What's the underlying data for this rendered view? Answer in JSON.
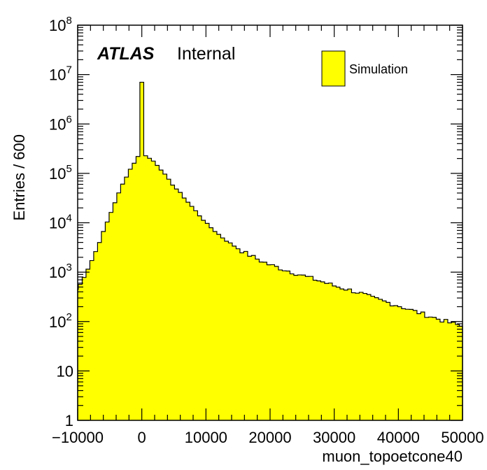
{
  "chart_data": {
    "type": "histogram",
    "xlabel": "muon_topoetcone40",
    "ylabel": "Entries / 600",
    "xlim": [
      -10000,
      50000
    ],
    "ylim": [
      1,
      100000000
    ],
    "yscale": "log",
    "bin_width": 600,
    "fill_color": "#ffff00",
    "line_color": "#000000",
    "x_tick_labels": [
      "−10000",
      "0",
      "10000",
      "20000",
      "30000",
      "40000",
      "50000"
    ],
    "y_tick_labels": [
      {
        "mantissa": "1",
        "exp": ""
      },
      {
        "mantissa": "10",
        "exp": ""
      },
      {
        "mantissa": "10",
        "exp": "2"
      },
      {
        "mantissa": "10",
        "exp": "3"
      },
      {
        "mantissa": "10",
        "exp": "4"
      },
      {
        "mantissa": "10",
        "exp": "5"
      },
      {
        "mantissa": "10",
        "exp": "6"
      },
      {
        "mantissa": "10",
        "exp": "7"
      },
      {
        "mantissa": "10",
        "exp": "8"
      }
    ],
    "experiment_label": "ATLAS",
    "status_label": "Internal",
    "legend": [
      {
        "name": "Simulation",
        "color": "#ffff00"
      }
    ],
    "shape_points": [
      [
        -10000,
        450
      ],
      [
        -9000,
        800
      ],
      [
        -8000,
        1500
      ],
      [
        -7000,
        3000
      ],
      [
        -6000,
        6500
      ],
      [
        -5000,
        14000
      ],
      [
        -4000,
        30000
      ],
      [
        -3000,
        60000
      ],
      [
        -2000,
        110000
      ],
      [
        -1000,
        180000
      ],
      [
        -300,
        250000
      ],
      [
        300,
        250000
      ],
      [
        1000,
        210000
      ],
      [
        2000,
        170000
      ],
      [
        3000,
        120000
      ],
      [
        4000,
        80000
      ],
      [
        5000,
        55000
      ],
      [
        6000,
        40000
      ],
      [
        7000,
        28000
      ],
      [
        8000,
        20000
      ],
      [
        9000,
        14000
      ],
      [
        10000,
        10000
      ],
      [
        11000,
        7500
      ],
      [
        12000,
        5800
      ],
      [
        13000,
        4500
      ],
      [
        14000,
        3700
      ],
      [
        15000,
        3000
      ],
      [
        16000,
        2500
      ],
      [
        17000,
        2150
      ],
      [
        18000,
        1850
      ],
      [
        19000,
        1600
      ],
      [
        20000,
        1400
      ],
      [
        22000,
        1150
      ],
      [
        24000,
        950
      ],
      [
        26000,
        780
      ],
      [
        28000,
        650
      ],
      [
        30000,
        530
      ],
      [
        32000,
        450
      ],
      [
        34000,
        380
      ],
      [
        36000,
        300
      ],
      [
        38000,
        250
      ],
      [
        40000,
        210
      ],
      [
        42000,
        170
      ],
      [
        44000,
        140
      ],
      [
        46000,
        115
      ],
      [
        48000,
        95
      ],
      [
        50000,
        80
      ]
    ],
    "spike": {
      "x_low": -300,
      "x_high": 300,
      "value": 7000000
    }
  }
}
